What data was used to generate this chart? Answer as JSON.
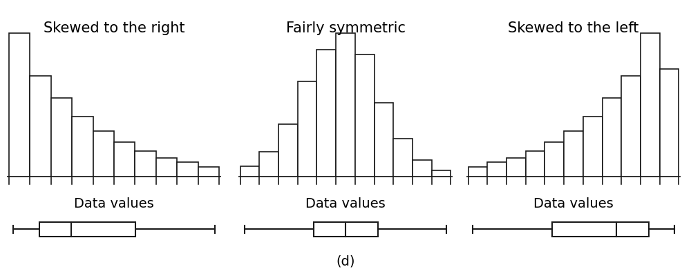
{
  "title_right_skew": "Skewed to the right",
  "title_symmetric": "Fairly symmetric",
  "title_left_skew": "Skewed to the left",
  "xlabel": "Data values",
  "label_d": "(d)",
  "bg_color": "#ffffff",
  "edge_color": "#1a1a1a",
  "hist_right_skew": [
    10,
    7,
    5.5,
    4.2,
    3.2,
    2.4,
    1.8,
    1.3,
    1.0,
    0.7
  ],
  "hist_symmetric": [
    0.5,
    1.2,
    2.5,
    4.5,
    6.0,
    6.8,
    5.8,
    3.5,
    1.8,
    0.8,
    0.3
  ],
  "hist_left_skew": [
    0.7,
    1.0,
    1.3,
    1.8,
    2.4,
    3.2,
    4.2,
    5.5,
    7.0,
    10.0,
    7.5
  ],
  "box_right_skew": {
    "whislo": 0.3,
    "q1": 1.5,
    "med": 3.0,
    "q3": 6.0,
    "whishi": 9.7
  },
  "box_symmetric": {
    "whislo": 0.3,
    "q1": 3.5,
    "med": 5.0,
    "q3": 6.5,
    "whishi": 9.7
  },
  "box_left_skew": {
    "whislo": 0.3,
    "q1": 4.0,
    "med": 7.0,
    "q3": 8.5,
    "whishi": 9.7
  },
  "title_fontsize": 15,
  "xlabel_fontsize": 14,
  "label_d_fontsize": 14
}
